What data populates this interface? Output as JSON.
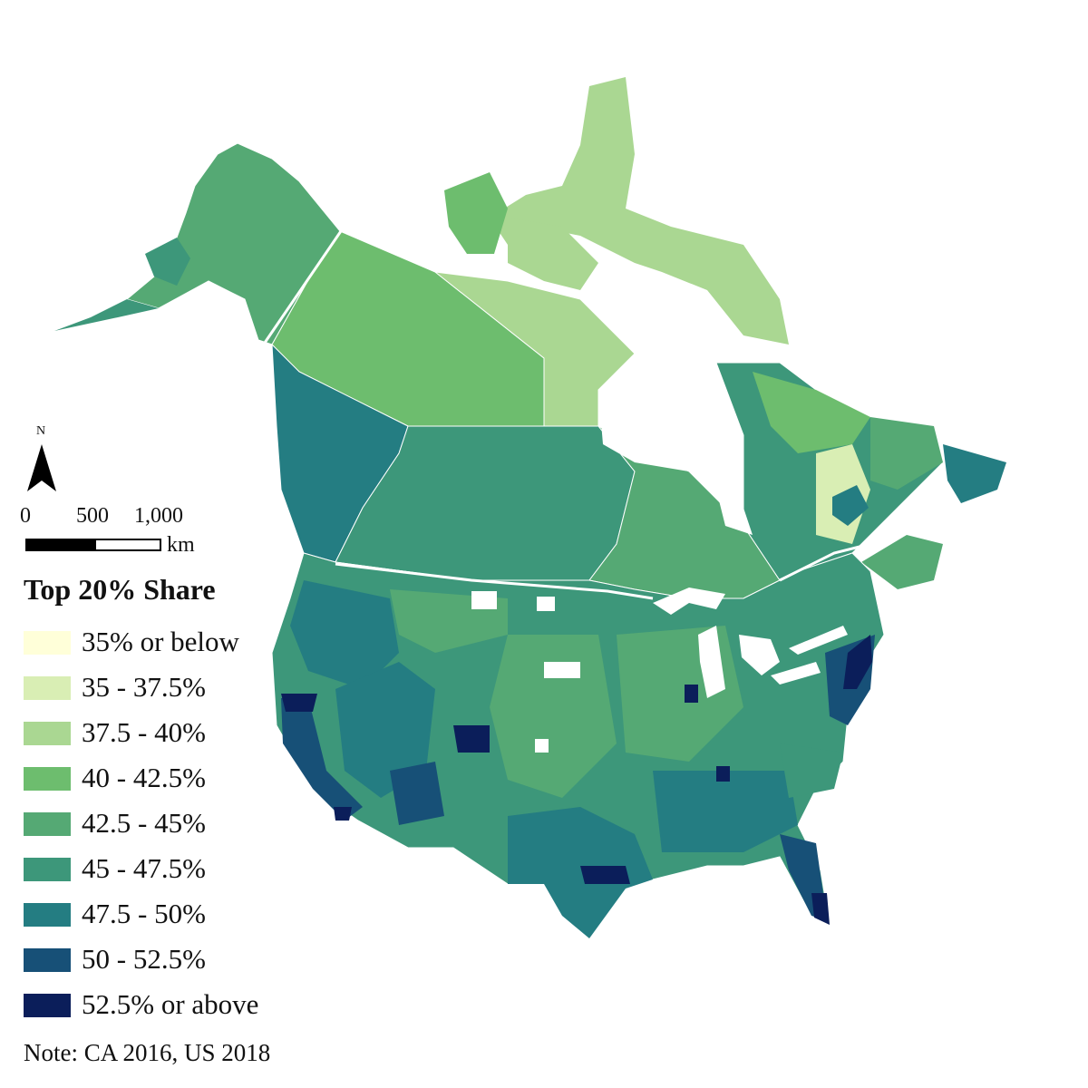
{
  "north_arrow": {
    "label": "N"
  },
  "scale": {
    "ticks": [
      "0",
      "500",
      "1,000"
    ],
    "unit": "km"
  },
  "legend": {
    "title": "Top 20% Share",
    "items": [
      {
        "label": "35% or below",
        "color": "#ffffd9"
      },
      {
        "label": "35 - 37.5%",
        "color": "#d9eeb4"
      },
      {
        "label": "37.5 - 40%",
        "color": "#aad792"
      },
      {
        "label": "40 - 42.5%",
        "color": "#6dbd6e"
      },
      {
        "label": "42.5 - 45%",
        "color": "#55a974"
      },
      {
        "label": "45 - 47.5%",
        "color": "#3d977a"
      },
      {
        "label": "47.5 - 50%",
        "color": "#247d82"
      },
      {
        "label": "50 - 52.5%",
        "color": "#175077"
      },
      {
        "label": "52.5% or above",
        "color": "#0b1e5a"
      }
    ]
  },
  "note": "Note: CA 2016, US 2018",
  "background_color": "#ffffff",
  "border_color": "#ffffff"
}
